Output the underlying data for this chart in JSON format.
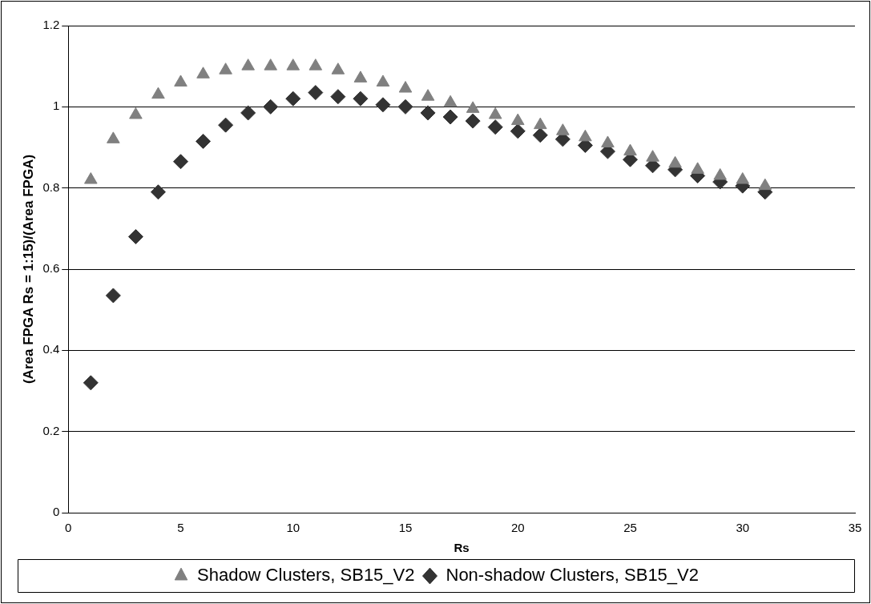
{
  "chart_data": {
    "type": "scatter",
    "xlabel": "Rs",
    "ylabel": "(Area FPGA Rs = 1:15)/(Area FPGA)",
    "x": [
      1,
      2,
      3,
      4,
      5,
      6,
      7,
      8,
      9,
      10,
      11,
      12,
      13,
      14,
      15,
      16,
      17,
      18,
      19,
      20,
      21,
      22,
      23,
      24,
      25,
      26,
      27,
      28,
      29,
      30,
      31
    ],
    "series": [
      {
        "name": "Shadow Clusters, SB15_V2",
        "color": "#808080",
        "marker": "triangle",
        "values": [
          0.82,
          0.92,
          0.98,
          1.03,
          1.06,
          1.08,
          1.09,
          1.1,
          1.1,
          1.1,
          1.1,
          1.09,
          1.07,
          1.06,
          1.045,
          1.025,
          1.01,
          0.995,
          0.98,
          0.965,
          0.955,
          0.94,
          0.925,
          0.91,
          0.89,
          0.875,
          0.86,
          0.845,
          0.83,
          0.82,
          0.805
        ]
      },
      {
        "name": "Non-shadow Clusters, SB15_V2",
        "color": "#333333",
        "marker": "diamond",
        "values": [
          0.32,
          0.535,
          0.68,
          0.79,
          0.865,
          0.915,
          0.955,
          0.985,
          1.0,
          1.02,
          1.035,
          1.025,
          1.02,
          1.005,
          1.0,
          0.985,
          0.975,
          0.965,
          0.95,
          0.94,
          0.93,
          0.92,
          0.905,
          0.89,
          0.87,
          0.855,
          0.845,
          0.83,
          0.815,
          0.805,
          0.79
        ]
      }
    ],
    "xlim": [
      0,
      35
    ],
    "xticks": [
      0,
      5,
      10,
      15,
      20,
      25,
      30,
      35
    ],
    "ylim": [
      0,
      1.2
    ],
    "yticks": [
      0,
      0.2,
      0.4,
      0.6,
      0.8,
      1,
      1.2
    ],
    "grid": "y",
    "legend": "bottom"
  }
}
